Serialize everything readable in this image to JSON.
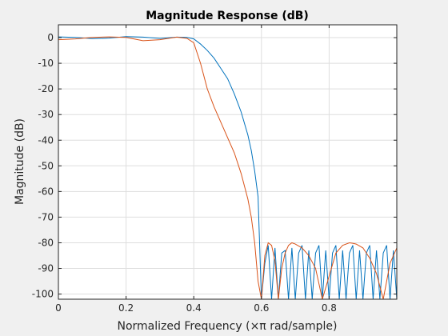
{
  "chart_data": {
    "type": "line",
    "title": "Magnitude Response (dB)",
    "xlabel": "Normalized Frequency (×π rad/sample)",
    "ylabel": "Magnitude (dB)",
    "xlim": [
      0,
      1
    ],
    "ylim": [
      -102,
      5
    ],
    "xticks": [
      0,
      0.2,
      0.4,
      0.6,
      0.8
    ],
    "xtick_labels": [
      "0",
      "0.2",
      "0.4",
      "0.6",
      "0.8"
    ],
    "yticks": [
      0,
      -10,
      -20,
      -30,
      -40,
      -50,
      -60,
      -70,
      -80,
      -90,
      -100
    ],
    "ytick_labels": [
      "0",
      "-10",
      "-20",
      "-30",
      "-40",
      "-50",
      "-60",
      "-70",
      "-80",
      "-90",
      "-100"
    ],
    "grid": true,
    "colors": {
      "series_1": "#0072bd",
      "series_2": "#d95319",
      "grid": "#dedede",
      "axes_bg": "#ffffff",
      "figure_bg": "#f0f0f0"
    },
    "series": [
      {
        "color": "#0072bd",
        "description_values": "equiripple-like lowpass: flat passband to ~0.4, stopband starts ~0.6, ~-81 dB lobes",
        "x": [
          0,
          0.05,
          0.1,
          0.15,
          0.2,
          0.25,
          0.3,
          0.35,
          0.38,
          0.4,
          0.42,
          0.44,
          0.46,
          0.48,
          0.5,
          0.52,
          0.54,
          0.56,
          0.57,
          0.58,
          0.59,
          0.6,
          0.61,
          0.62,
          0.63,
          0.64,
          0.65,
          0.66,
          0.67,
          0.68,
          0.69,
          0.7,
          0.71,
          0.72,
          0.73,
          0.74,
          0.75,
          0.76,
          0.77,
          0.78,
          0.79,
          0.8,
          0.81,
          0.82,
          0.83,
          0.84,
          0.85,
          0.86,
          0.87,
          0.88,
          0.89,
          0.9,
          0.91,
          0.92,
          0.93,
          0.94,
          0.95,
          0.96,
          0.97,
          0.98,
          0.99,
          1.0
        ],
        "y": [
          0.3,
          0.1,
          -0.4,
          -0.2,
          0.4,
          0.2,
          -0.3,
          0.2,
          0.1,
          -0.5,
          -2.5,
          -5,
          -8,
          -12,
          -16,
          -22,
          -29,
          -38,
          -44,
          -52,
          -62,
          -102,
          -88,
          -81,
          -102,
          -82,
          -102,
          -84,
          -83,
          -102,
          -82,
          -102,
          -84,
          -81,
          -102,
          -83,
          -102,
          -84,
          -81,
          -102,
          -83,
          -102,
          -84,
          -81,
          -102,
          -83,
          -102,
          -84,
          -81,
          -102,
          -83,
          -102,
          -84,
          -81,
          -102,
          -83,
          -102,
          -84,
          -81,
          -102,
          -83,
          -102
        ]
      },
      {
        "color": "#d95319",
        "x": [
          0,
          0.05,
          0.1,
          0.15,
          0.2,
          0.25,
          0.3,
          0.35,
          0.38,
          0.4,
          0.42,
          0.44,
          0.46,
          0.48,
          0.5,
          0.52,
          0.54,
          0.56,
          0.57,
          0.58,
          0.59,
          0.6,
          0.61,
          0.62,
          0.63,
          0.64,
          0.65,
          0.66,
          0.67,
          0.68,
          0.69,
          0.7,
          0.72,
          0.74,
          0.76,
          0.78,
          0.8,
          0.82,
          0.84,
          0.86,
          0.87,
          0.88,
          0.9,
          0.92,
          0.94,
          0.96,
          0.98,
          1.0
        ],
        "y": [
          -0.8,
          -0.5,
          0.1,
          0.3,
          0.1,
          -1.2,
          -0.8,
          0.2,
          -0.3,
          -2,
          -10,
          -20,
          -27,
          -33,
          -39,
          -45,
          -53,
          -63,
          -70,
          -80,
          -95,
          -102,
          -85,
          -80,
          -81,
          -87,
          -102,
          -90,
          -84,
          -81,
          -80,
          -80.5,
          -82,
          -85,
          -90,
          -102,
          -93,
          -84,
          -81,
          -80,
          -80.2,
          -80.5,
          -82,
          -86,
          -92,
          -102,
          -88,
          -82
        ]
      }
    ]
  }
}
